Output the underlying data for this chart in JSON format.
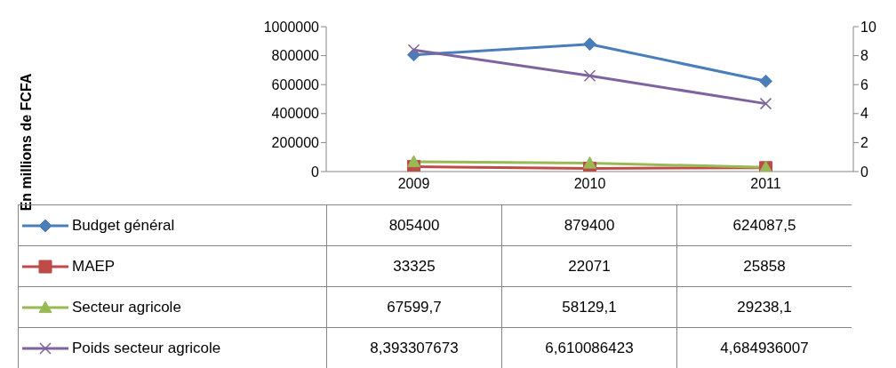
{
  "chart_data": {
    "type": "line",
    "annotations": [
      "En millions de FCFA"
    ],
    "categories": [
      "2009",
      "2010",
      "2011"
    ],
    "ylim": [
      0,
      1000000
    ],
    "yticks": [
      0,
      200000,
      400000,
      600000,
      800000,
      1000000
    ],
    "y2lim": [
      0,
      10
    ],
    "y2ticks": [
      0,
      2,
      4,
      6,
      8,
      10
    ],
    "grid": false,
    "legend": "bottom",
    "series": [
      {
        "name": "Budget général",
        "color": "#4a7ebb",
        "marker": "diamond",
        "values": [
          805400,
          879400,
          624087.5
        ],
        "value_labels": [
          "805400",
          "879400",
          "624087,5"
        ]
      },
      {
        "name": "MAEP",
        "color": "#be4b48",
        "marker": "square",
        "values": [
          33325,
          22071,
          25858
        ],
        "value_labels": [
          "33325",
          "22071",
          "25858"
        ]
      },
      {
        "name": "Secteur agricole",
        "color": "#98b954",
        "marker": "triangle",
        "values": [
          67599.7,
          58129.1,
          29238.1
        ],
        "value_labels": [
          "67599,7",
          "58129,1",
          "29238,1"
        ]
      },
      {
        "name": "Poids secteur agricole",
        "color": "#7e649e",
        "marker": "cross",
        "axis": "y2",
        "values": [
          8.393307673,
          6.610086423,
          4.684936007
        ],
        "value_labels": [
          "8,393307673",
          "6,610086423",
          "4,684936007"
        ]
      }
    ]
  }
}
